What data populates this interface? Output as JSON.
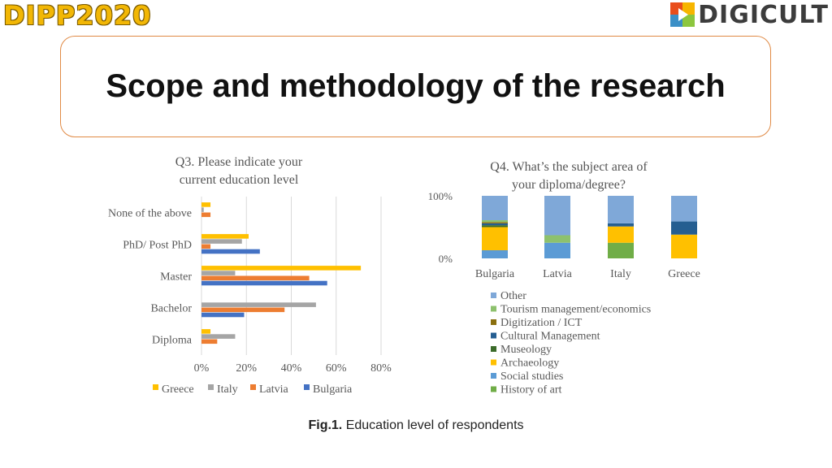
{
  "header": {
    "left_logo_text": "DIPP2020",
    "right_logo_text": "DIGICULT",
    "title": "Scope and methodology of the research"
  },
  "caption": {
    "label": "Fig.1.",
    "text": "Education level of respondents"
  },
  "colors": {
    "Greece": "#ffc000",
    "Italy": "#a5a5a5",
    "Latvia": "#ed7d31",
    "Bulgaria": "#4472c4",
    "Other": "#7fa8d8",
    "Tourism management/economics": "#8dc16d",
    "Digitization / ICT": "#8a6f0e",
    "Cultural Management": "#255e91",
    "Museology": "#3b6b2a",
    "Archaeology": "#ffc000",
    "Social studies": "#5b9bd5",
    "History of art": "#70ad47"
  },
  "chart_data": [
    {
      "type": "bar",
      "orientation": "horizontal",
      "title": "Q3. Please indicate your current education level",
      "categories": [
        "None of the above",
        "PhD/ Post PhD",
        "Master",
        "Bachelor",
        "Diploma"
      ],
      "series": [
        {
          "name": "Greece",
          "values": [
            4,
            21,
            71,
            0,
            4
          ]
        },
        {
          "name": "Italy",
          "values": [
            1,
            18,
            15,
            51,
            15
          ]
        },
        {
          "name": "Latvia",
          "values": [
            4,
            4,
            48,
            37,
            7
          ]
        },
        {
          "name": "Bulgaria",
          "values": [
            0,
            26,
            56,
            19,
            0
          ]
        }
      ],
      "xlim": [
        0,
        80
      ],
      "xticks": [
        "0%",
        "20%",
        "40%",
        "60%",
        "80%"
      ],
      "grid": true,
      "legend": "bottom"
    },
    {
      "type": "bar",
      "orientation": "vertical",
      "stacked": true,
      "title": "Q4. What’s the subject area of your diploma/degree?",
      "categories": [
        "Bulgaria",
        "Latvia",
        "Italy",
        "Greece"
      ],
      "series": [
        {
          "name": "History of art",
          "values": [
            0,
            0,
            25,
            0
          ]
        },
        {
          "name": "Social studies",
          "values": [
            13,
            25,
            0,
            0
          ]
        },
        {
          "name": "Archaeology",
          "values": [
            37,
            0,
            26,
            38
          ]
        },
        {
          "name": "Museology",
          "values": [
            3,
            0,
            0,
            0
          ]
        },
        {
          "name": "Cultural Management",
          "values": [
            3,
            0,
            5,
            21
          ]
        },
        {
          "name": "Digitization / ICT",
          "values": [
            2,
            0,
            0,
            0
          ]
        },
        {
          "name": "Tourism management/economics",
          "values": [
            3,
            12,
            0,
            0
          ]
        },
        {
          "name": "Other",
          "values": [
            39,
            63,
            44,
            41
          ]
        }
      ],
      "ylim": [
        0,
        100
      ],
      "yticks": [
        "0%",
        "100%"
      ],
      "legend": "bottom",
      "legend_order": [
        "Other",
        "Tourism management/economics",
        "Digitization / ICT",
        "Cultural Management",
        "Museology",
        "Archaeology",
        "Social studies",
        "History of art"
      ]
    }
  ]
}
